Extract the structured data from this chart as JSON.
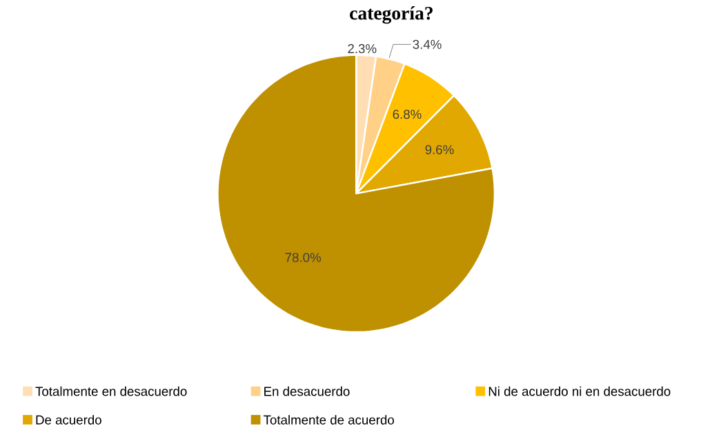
{
  "chart_data": {
    "type": "pie",
    "title": "categoría?",
    "categories": [
      "Totalmente en desacuerdo",
      "En desacuerdo",
      "Ni de acuerdo ni en desacuerdo",
      "De acuerdo",
      "Totalmente de acuerdo"
    ],
    "values": [
      2.3,
      3.4,
      6.8,
      9.6,
      78.0
    ],
    "value_labels": [
      "2.3%",
      "3.4%",
      "6.8%",
      "9.6%",
      "78.0%"
    ],
    "colors": [
      "#ffdeb4",
      "#ffd085",
      "#ffc000",
      "#e0a800",
      "#bf9000"
    ],
    "legend": "bottom"
  }
}
